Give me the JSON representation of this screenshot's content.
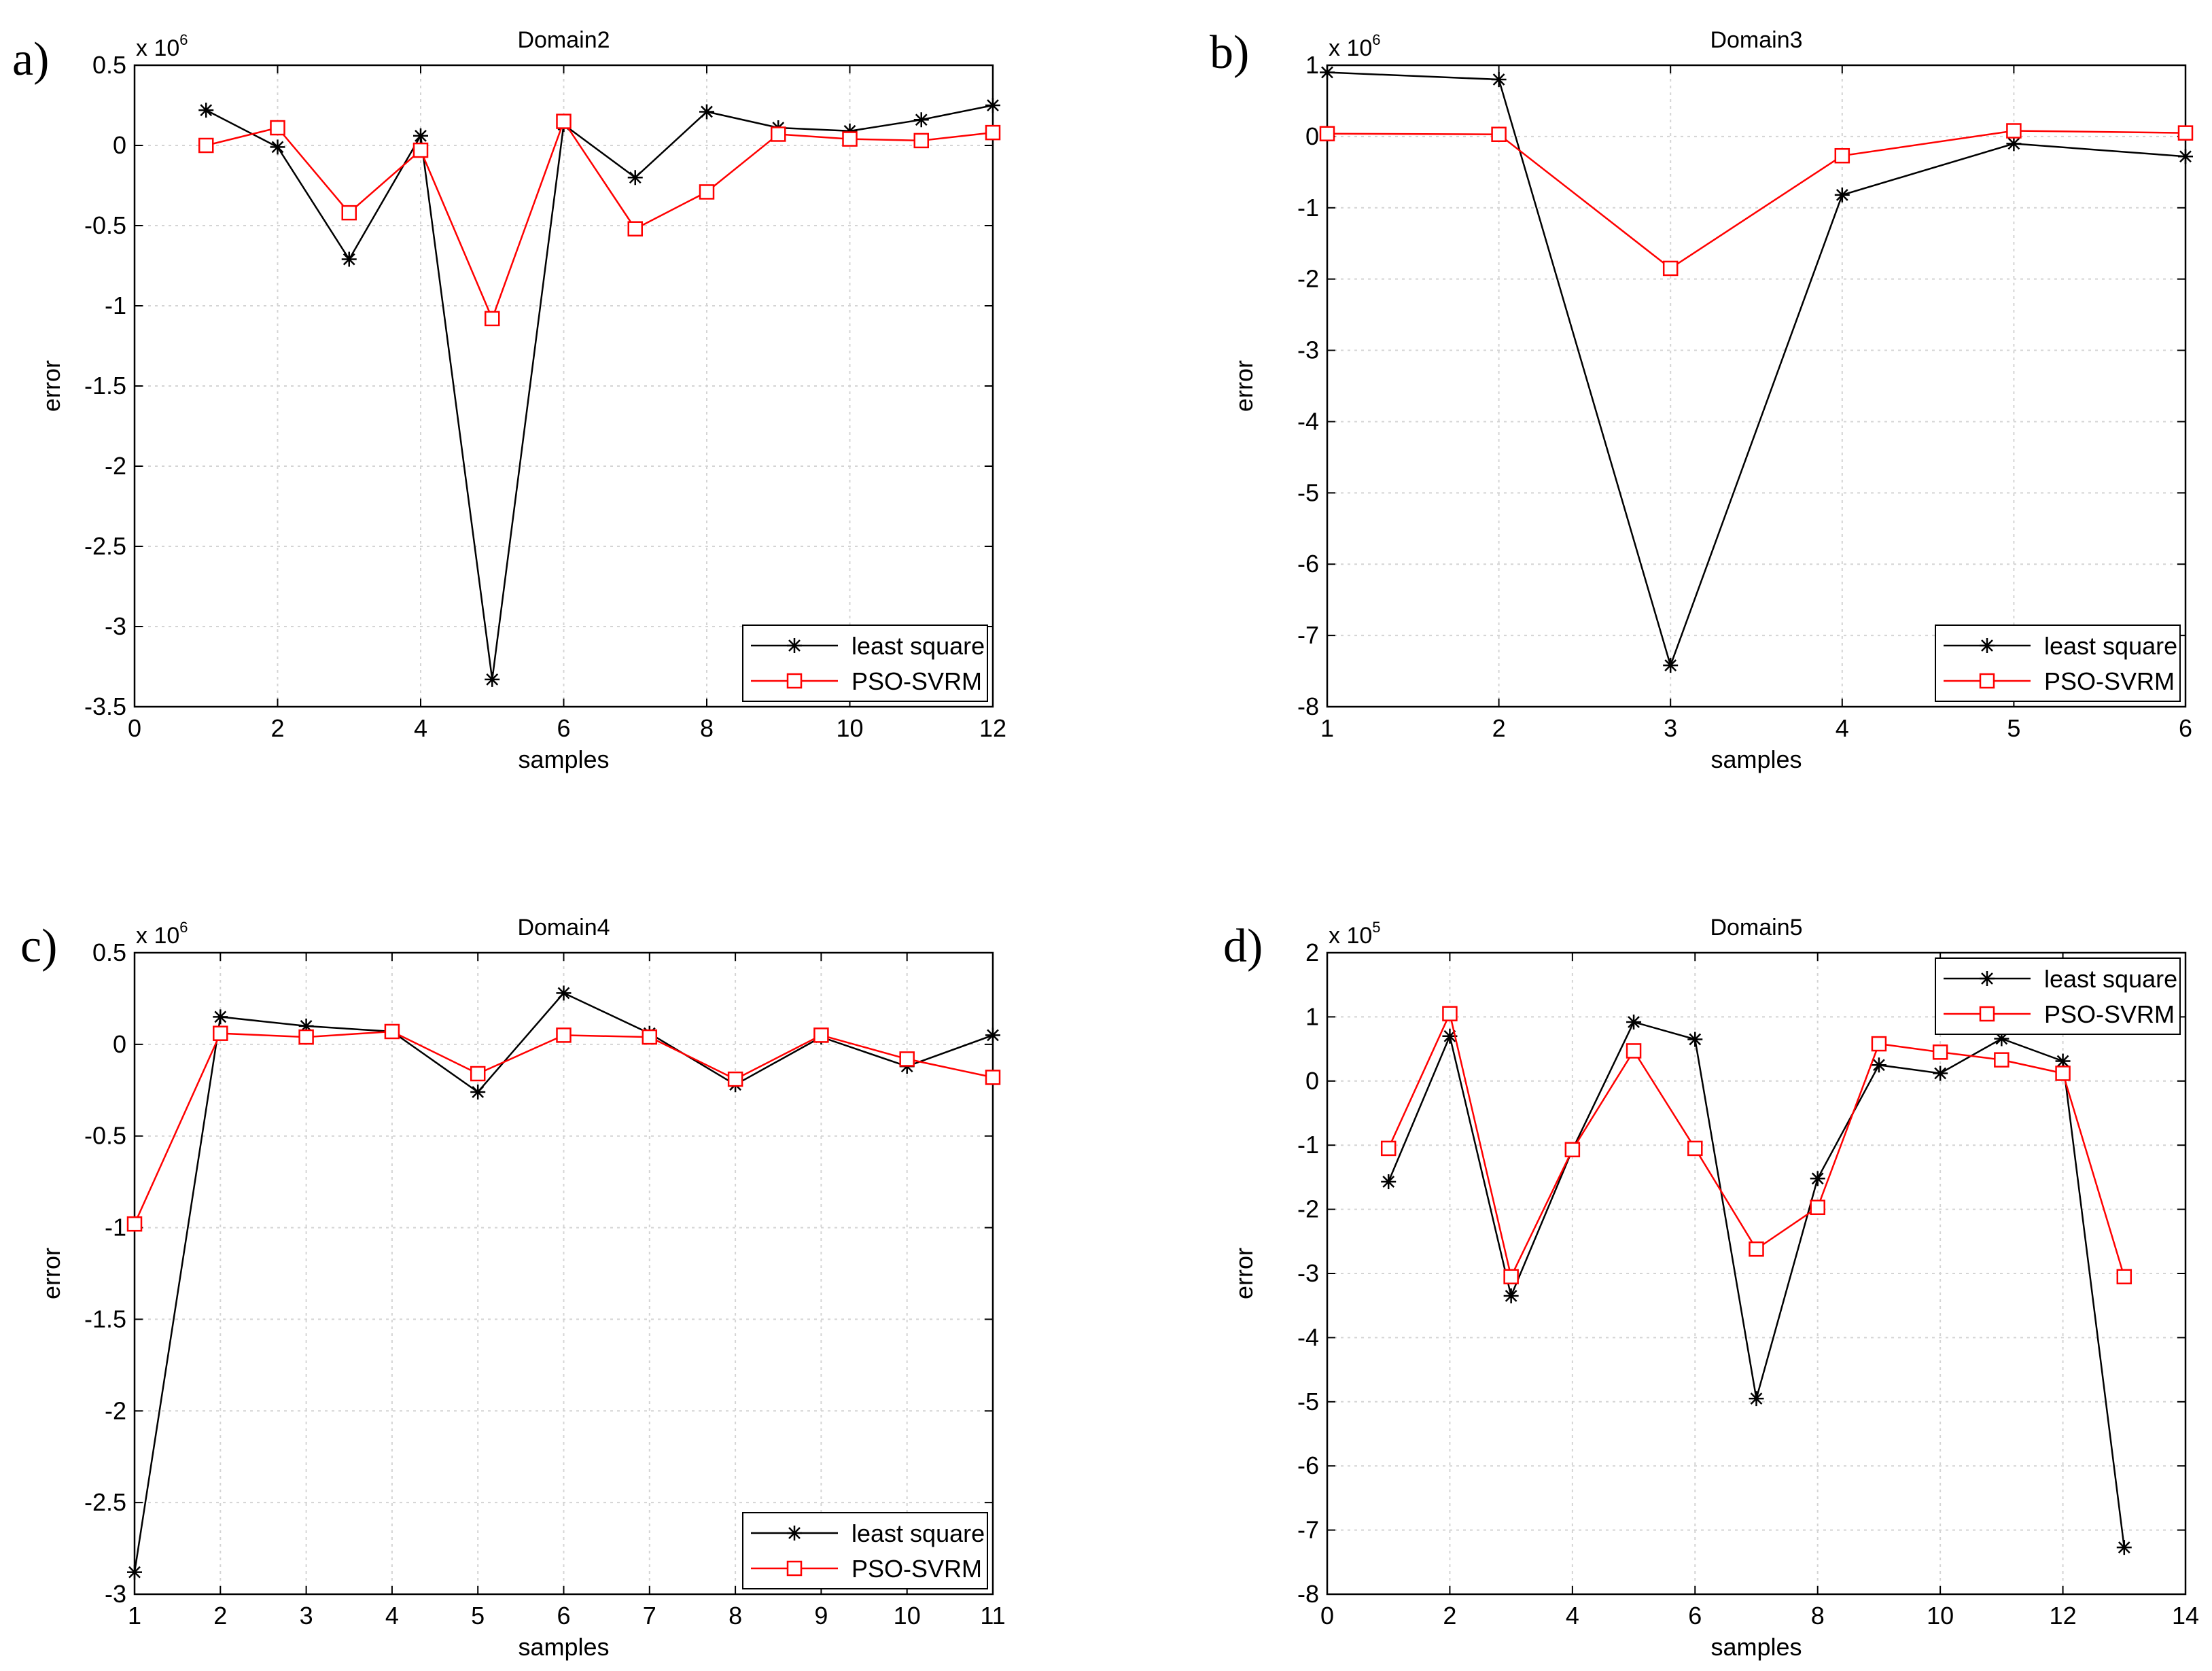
{
  "colors": {
    "least_square": "#000000",
    "pso_svrm": "#ff0000",
    "grid": "#d4d4d4"
  },
  "chart_data": [
    {
      "panel": "a)",
      "type": "line",
      "title": "Domain2",
      "xlabel": "samples",
      "ylabel": "error",
      "exponent": {
        "base": "x 10",
        "power": "6"
      },
      "xlim": [
        0,
        12
      ],
      "ylim": [
        -3.5,
        0.5
      ],
      "xticks": [
        0,
        2,
        4,
        6,
        8,
        10,
        12
      ],
      "yticks": [
        0.5,
        0,
        -0.5,
        -1,
        -1.5,
        -2,
        -2.5,
        -3,
        -3.5
      ],
      "legend_position": "bottom-right",
      "series": [
        {
          "name": "least square",
          "marker": "star",
          "x": [
            1,
            2,
            3,
            4,
            5,
            6,
            7,
            8,
            9,
            10,
            11,
            12
          ],
          "y": [
            0.22,
            -0.01,
            -0.71,
            0.06,
            -3.33,
            0.13,
            -0.2,
            0.21,
            0.11,
            0.09,
            0.16,
            0.25
          ]
        },
        {
          "name": "PSO-SVRM",
          "marker": "square",
          "x": [
            1,
            2,
            3,
            4,
            5,
            6,
            7,
            8,
            9,
            10,
            11,
            12
          ],
          "y": [
            0.0,
            0.11,
            -0.42,
            -0.03,
            -1.08,
            0.15,
            -0.52,
            -0.29,
            0.07,
            0.04,
            0.03,
            0.08
          ]
        }
      ]
    },
    {
      "panel": "b)",
      "type": "line",
      "title": "Domain3",
      "xlabel": "samples",
      "ylabel": "error",
      "exponent": {
        "base": "x 10",
        "power": "6"
      },
      "xlim": [
        1,
        6
      ],
      "ylim": [
        -8,
        1
      ],
      "xticks": [
        1,
        2,
        3,
        4,
        5,
        6
      ],
      "yticks": [
        1,
        0,
        -1,
        -2,
        -3,
        -4,
        -5,
        -6,
        -7,
        -8
      ],
      "legend_position": "bottom-right",
      "series": [
        {
          "name": "least square",
          "marker": "star",
          "x": [
            1,
            2,
            3,
            4,
            5,
            6
          ],
          "y": [
            0.9,
            0.8,
            -7.42,
            -0.82,
            -0.1,
            -0.28
          ]
        },
        {
          "name": "PSO-SVRM",
          "marker": "square",
          "x": [
            1,
            2,
            3,
            4,
            5,
            6
          ],
          "y": [
            0.04,
            0.03,
            -1.85,
            -0.27,
            0.08,
            0.05
          ]
        }
      ]
    },
    {
      "panel": "c)",
      "type": "line",
      "title": "Domain4",
      "xlabel": "samples",
      "ylabel": "error",
      "exponent": {
        "base": "x 10",
        "power": "6"
      },
      "xlim": [
        1,
        11
      ],
      "ylim": [
        -3,
        0.5
      ],
      "xticks": [
        1,
        2,
        3,
        4,
        5,
        6,
        7,
        8,
        9,
        10,
        11
      ],
      "yticks": [
        0.5,
        0,
        -0.5,
        -1,
        -1.5,
        -2,
        -2.5,
        -3
      ],
      "legend_position": "bottom-right",
      "series": [
        {
          "name": "least square",
          "marker": "star",
          "x": [
            1,
            2,
            3,
            4,
            5,
            6,
            7,
            8,
            9,
            10,
            11
          ],
          "y": [
            -2.88,
            0.15,
            0.1,
            0.07,
            -0.26,
            0.28,
            0.06,
            -0.22,
            0.04,
            -0.12,
            0.05
          ]
        },
        {
          "name": "PSO-SVRM",
          "marker": "square",
          "x": [
            1,
            2,
            3,
            4,
            5,
            6,
            7,
            8,
            9,
            10,
            11
          ],
          "y": [
            -0.98,
            0.06,
            0.04,
            0.07,
            -0.16,
            0.05,
            0.04,
            -0.19,
            0.05,
            -0.08,
            -0.18
          ]
        }
      ]
    },
    {
      "panel": "d)",
      "type": "line",
      "title": "Domain5",
      "xlabel": "samples",
      "ylabel": "error",
      "exponent": {
        "base": "x 10",
        "power": "5"
      },
      "xlim": [
        0,
        14
      ],
      "ylim": [
        -8,
        2
      ],
      "xticks": [
        0,
        2,
        4,
        6,
        8,
        10,
        12,
        14
      ],
      "yticks": [
        2,
        1,
        0,
        -1,
        -2,
        -3,
        -4,
        -5,
        -6,
        -7,
        -8
      ],
      "legend_position": "top-right",
      "series": [
        {
          "name": "least square",
          "marker": "star",
          "x": [
            1,
            2,
            3,
            4,
            5,
            6,
            7,
            8,
            9,
            10,
            11,
            12,
            13
          ],
          "y": [
            -1.57,
            0.7,
            -3.35,
            -1.07,
            0.92,
            0.65,
            -4.95,
            -1.52,
            0.25,
            0.12,
            0.66,
            0.31,
            -7.27
          ]
        },
        {
          "name": "PSO-SVRM",
          "marker": "square",
          "x": [
            1,
            2,
            3,
            4,
            5,
            6,
            7,
            8,
            9,
            10,
            11,
            12,
            13
          ],
          "y": [
            -1.05,
            1.05,
            -3.05,
            -1.07,
            0.47,
            -1.05,
            -2.62,
            -1.97,
            0.58,
            0.45,
            0.33,
            0.12,
            -3.05
          ]
        }
      ]
    }
  ]
}
